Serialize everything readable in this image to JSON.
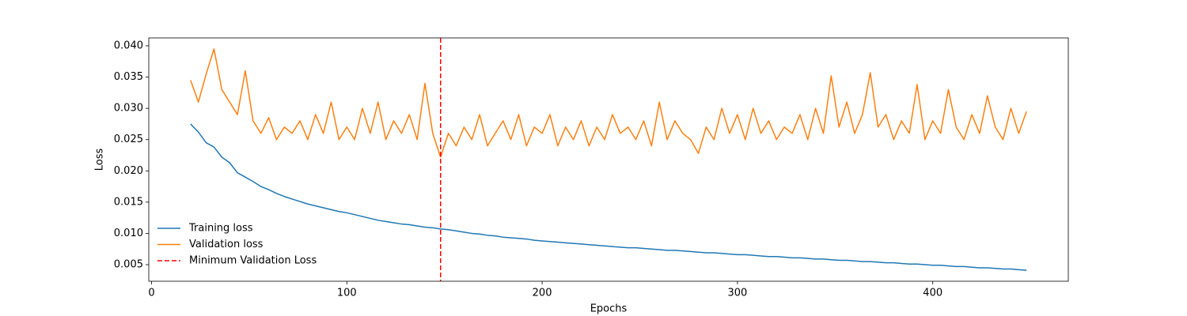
{
  "chart_data": {
    "type": "line",
    "xlabel": "Epochs",
    "ylabel": "Loss",
    "x": [
      20,
      24,
      28,
      32,
      36,
      40,
      44,
      48,
      52,
      56,
      60,
      64,
      68,
      72,
      76,
      80,
      84,
      88,
      92,
      96,
      100,
      104,
      108,
      112,
      116,
      120,
      124,
      128,
      132,
      136,
      140,
      144,
      148,
      152,
      156,
      160,
      164,
      168,
      172,
      176,
      180,
      184,
      188,
      192,
      196,
      200,
      204,
      208,
      212,
      216,
      220,
      224,
      228,
      232,
      236,
      240,
      244,
      248,
      252,
      256,
      260,
      264,
      268,
      272,
      276,
      280,
      284,
      288,
      292,
      296,
      300,
      304,
      308,
      312,
      316,
      320,
      324,
      328,
      332,
      336,
      340,
      344,
      348,
      352,
      356,
      360,
      364,
      368,
      372,
      376,
      380,
      384,
      388,
      392,
      396,
      400,
      404,
      408,
      412,
      416,
      420,
      424,
      428,
      432,
      436,
      440,
      444,
      448
    ],
    "series": [
      {
        "name": "Training loss",
        "color": "#1f77b4",
        "values": [
          0.0275,
          0.0262,
          0.0245,
          0.0238,
          0.0222,
          0.0213,
          0.0197,
          0.019,
          0.0183,
          0.0175,
          0.017,
          0.0164,
          0.0159,
          0.0155,
          0.0151,
          0.0147,
          0.0144,
          0.0141,
          0.0138,
          0.0135,
          0.0133,
          0.013,
          0.0127,
          0.0124,
          0.0121,
          0.0119,
          0.0117,
          0.0115,
          0.0114,
          0.0112,
          0.011,
          0.0109,
          0.0107,
          0.0106,
          0.0104,
          0.0102,
          0.01,
          0.0099,
          0.0097,
          0.0096,
          0.0094,
          0.0093,
          0.0092,
          0.0091,
          0.0089,
          0.0088,
          0.0087,
          0.0086,
          0.0085,
          0.0084,
          0.0083,
          0.0082,
          0.0081,
          0.008,
          0.0079,
          0.0078,
          0.0077,
          0.0077,
          0.0076,
          0.0075,
          0.0074,
          0.0073,
          0.0073,
          0.0072,
          0.0071,
          0.007,
          0.0069,
          0.0069,
          0.0068,
          0.0067,
          0.0066,
          0.0066,
          0.0065,
          0.0064,
          0.0063,
          0.0063,
          0.0062,
          0.0061,
          0.0061,
          0.006,
          0.0059,
          0.0059,
          0.0058,
          0.0057,
          0.0057,
          0.0056,
          0.0055,
          0.0055,
          0.0054,
          0.0053,
          0.0053,
          0.0052,
          0.0051,
          0.0051,
          0.005,
          0.0049,
          0.0049,
          0.0048,
          0.0047,
          0.0047,
          0.0046,
          0.0045,
          0.0045,
          0.0044,
          0.0043,
          0.0043,
          0.0042,
          0.0041
        ]
      },
      {
        "name": "Validation loss",
        "color": "#ff7f0e",
        "values": [
          0.0345,
          0.031,
          0.0355,
          0.0395,
          0.033,
          0.031,
          0.029,
          0.036,
          0.028,
          0.026,
          0.0285,
          0.025,
          0.027,
          0.026,
          0.028,
          0.025,
          0.029,
          0.026,
          0.031,
          0.025,
          0.027,
          0.025,
          0.03,
          0.026,
          0.031,
          0.025,
          0.028,
          0.026,
          0.029,
          0.025,
          0.034,
          0.026,
          0.0222,
          0.026,
          0.024,
          0.027,
          0.025,
          0.029,
          0.024,
          0.026,
          0.028,
          0.025,
          0.029,
          0.024,
          0.027,
          0.026,
          0.029,
          0.024,
          0.027,
          0.025,
          0.028,
          0.024,
          0.027,
          0.025,
          0.029,
          0.026,
          0.027,
          0.025,
          0.028,
          0.024,
          0.031,
          0.025,
          0.028,
          0.026,
          0.025,
          0.0228,
          0.027,
          0.025,
          0.03,
          0.026,
          0.029,
          0.025,
          0.03,
          0.026,
          0.028,
          0.025,
          0.027,
          0.026,
          0.029,
          0.025,
          0.03,
          0.026,
          0.0352,
          0.027,
          0.031,
          0.026,
          0.029,
          0.0357,
          0.027,
          0.029,
          0.025,
          0.028,
          0.026,
          0.0338,
          0.025,
          0.028,
          0.026,
          0.033,
          0.027,
          0.025,
          0.029,
          0.026,
          0.032,
          0.027,
          0.025,
          0.03,
          0.026,
          0.0295
        ]
      }
    ],
    "vlines": [
      {
        "name": "Minimum Validation Loss",
        "x": 148,
        "color": "#ff0000",
        "style": "dashed"
      }
    ],
    "xlim": [
      -1.4,
      469.4
    ],
    "ylim": [
      0.00235,
      0.04126
    ],
    "xticks": [
      0,
      100,
      200,
      300,
      400
    ],
    "yticks": [
      0.005,
      {
        "value": 0.01,
        "label": "0.010"
      },
      0.015,
      {
        "value": 0.02,
        "label": "0.020"
      },
      0.025,
      {
        "value": 0.03,
        "label": "0.030"
      },
      0.035,
      {
        "value": 0.04,
        "label": "0.040"
      }
    ],
    "legend": "lower left",
    "grid": false
  }
}
